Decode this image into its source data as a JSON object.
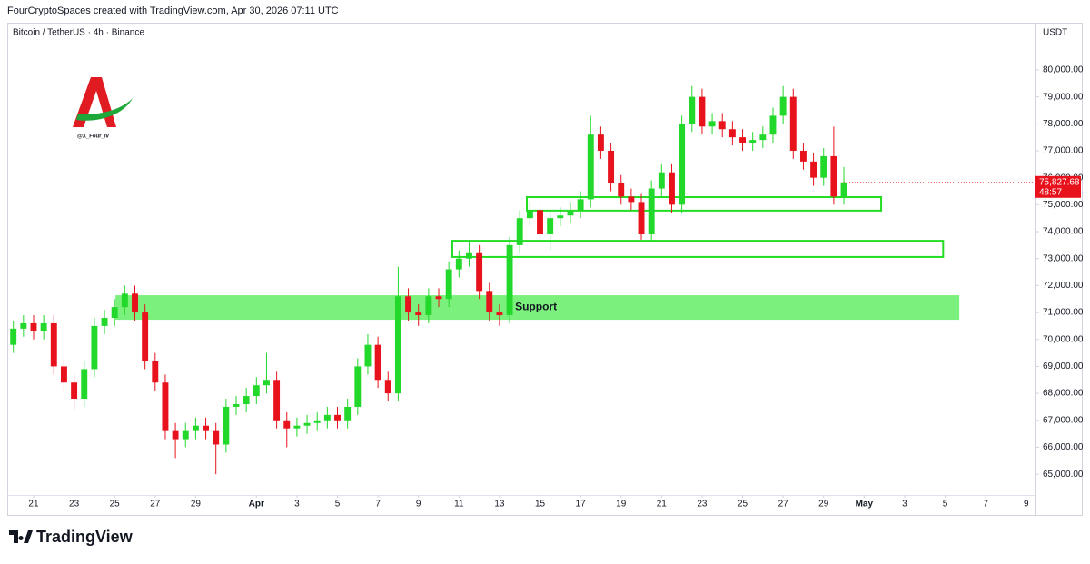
{
  "header": "FourCryptoSpaces created with TradingView.com, Apr 30, 2026 07:11 UTC",
  "symbol": "Bitcoin / TetherUS · 4h · Binance",
  "currency": "USDT",
  "handle": "@X_Four_lv",
  "brand": "TradingView",
  "chart_data": {
    "type": "candlestick",
    "x": [
      20,
      20.5,
      21,
      21.5,
      22,
      22.5,
      23,
      23.5,
      24,
      24.5,
      25,
      25.5,
      26,
      26.5,
      27,
      27.5,
      28,
      28.5,
      29,
      29.5,
      30,
      30.5,
      31,
      31.5,
      32,
      32.5,
      33,
      33.5,
      34,
      34.5,
      35,
      35.5,
      36,
      36.5,
      37,
      37.5,
      38,
      38.5,
      39,
      39.5,
      40,
      40.5,
      41,
      41.5,
      42,
      42.5,
      43,
      43.5,
      44,
      44.5,
      45,
      45.5,
      46,
      46.5,
      47,
      47.5,
      48,
      48.5,
      49,
      49.5,
      50,
      50.5,
      51,
      51.5,
      52,
      52.5,
      53,
      53.5,
      54,
      54.5,
      55,
      55.5,
      56,
      56.5,
      57,
      57.5,
      58,
      58.5,
      59,
      59.5,
      60,
      60.5,
      61
    ],
    "open": [
      69800,
      70400,
      70600,
      70300,
      70600,
      69000,
      68400,
      67800,
      68900,
      70500,
      70800,
      71200,
      71700,
      71000,
      69200,
      68400,
      66600,
      66300,
      66600,
      66800,
      66600,
      66100,
      67500,
      67600,
      67900,
      68300,
      68500,
      67000,
      66700,
      66800,
      66900,
      67000,
      67200,
      67000,
      67500,
      69000,
      69800,
      68500,
      68000,
      71600,
      71000,
      70900,
      71600,
      71500,
      72600,
      73000,
      73200,
      71800,
      71000,
      70900,
      73500,
      74500,
      74800,
      73900,
      74500,
      74600,
      74800,
      75200,
      77600,
      77000,
      75800,
      75300,
      75100,
      73900,
      75600,
      76200,
      75000,
      78000,
      79000,
      77900,
      78100,
      77800,
      77500,
      77300,
      77400,
      77600,
      78300,
      79000,
      77000,
      76600,
      76000,
      76800,
      75300
    ],
    "high": [
      70700,
      70900,
      70900,
      70900,
      70900,
      69300,
      68700,
      69200,
      70800,
      71100,
      71500,
      72000,
      72000,
      71300,
      69500,
      68700,
      66900,
      66900,
      67100,
      67100,
      66900,
      67800,
      67900,
      68200,
      68600,
      69500,
      68800,
      67300,
      67100,
      67200,
      67300,
      67500,
      67500,
      67800,
      69300,
      70200,
      70100,
      68800,
      72700,
      71900,
      71300,
      71900,
      71900,
      72900,
      73300,
      73700,
      73500,
      72100,
      71300,
      73800,
      74800,
      75100,
      75100,
      74800,
      74900,
      75100,
      75500,
      78300,
      77900,
      77300,
      76100,
      75600,
      75400,
      75900,
      76500,
      76500,
      78300,
      79400,
      79300,
      78400,
      78400,
      78100,
      77800,
      77700,
      77900,
      78600,
      79400,
      79300,
      77300,
      76900,
      77100,
      77900,
      76400
    ],
    "low": [
      69500,
      70100,
      70000,
      70000,
      68700,
      68100,
      67400,
      67500,
      68600,
      70200,
      70500,
      70900,
      70700,
      68900,
      68100,
      66300,
      65600,
      66000,
      66300,
      66300,
      65000,
      65800,
      67200,
      67300,
      67600,
      68000,
      66700,
      66000,
      66400,
      66500,
      66600,
      66700,
      66700,
      66700,
      67200,
      68700,
      68200,
      67700,
      67700,
      70700,
      70500,
      70600,
      71200,
      71200,
      72300,
      72700,
      71500,
      70700,
      70500,
      70600,
      73200,
      74200,
      73600,
      73300,
      74200,
      74300,
      74500,
      74900,
      76700,
      75500,
      75000,
      74800,
      73700,
      73600,
      75300,
      74700,
      74700,
      77700,
      77600,
      77600,
      77500,
      77200,
      77000,
      77000,
      77100,
      77300,
      78000,
      76700,
      76300,
      75700,
      75700,
      75000,
      75000
    ],
    "close": [
      70400,
      70600,
      70300,
      70600,
      69000,
      68400,
      67800,
      68900,
      70500,
      70800,
      71200,
      71700,
      71000,
      69200,
      68400,
      66600,
      66300,
      66600,
      66800,
      66600,
      66100,
      67500,
      67600,
      67900,
      68300,
      68500,
      67000,
      66700,
      66800,
      66900,
      67000,
      67200,
      67000,
      67500,
      69000,
      69800,
      68500,
      68000,
      71600,
      71000,
      70900,
      71600,
      71500,
      72600,
      73000,
      73200,
      71800,
      71000,
      70900,
      73500,
      74500,
      74800,
      73900,
      74500,
      74600,
      74800,
      75200,
      77600,
      77000,
      75800,
      75300,
      75100,
      73900,
      75600,
      76200,
      75000,
      78000,
      79000,
      77900,
      78100,
      77800,
      77500,
      77300,
      77400,
      77600,
      78300,
      79000,
      77000,
      76600,
      76000,
      76800,
      75300,
      75827.68
    ],
    "up_color": "#22d82a",
    "down_color": "#e8121c",
    "xlim": [
      19.7,
      70.46
    ],
    "ylim": [
      64230,
      81750
    ],
    "xticks": [
      21,
      23,
      25,
      27,
      29,
      {
        "value": 32,
        "label": "Apr"
      },
      {
        "value": 34,
        "label": "3"
      },
      {
        "value": 36,
        "label": "5"
      },
      {
        "value": 38,
        "label": "7"
      },
      {
        "value": 40,
        "label": "9"
      },
      {
        "value": 42,
        "label": "11"
      },
      {
        "value": 44,
        "label": "13"
      },
      {
        "value": 46,
        "label": "15"
      },
      {
        "value": 48,
        "label": "17"
      },
      {
        "value": 50,
        "label": "19"
      },
      {
        "value": 52,
        "label": "21"
      },
      {
        "value": 54,
        "label": "23"
      },
      {
        "value": 56,
        "label": "25"
      },
      {
        "value": 58,
        "label": "27"
      },
      {
        "value": 60,
        "label": "29"
      },
      {
        "value": 62,
        "label": "May"
      },
      {
        "value": 64,
        "label": "3"
      },
      {
        "value": 66,
        "label": "5"
      },
      {
        "value": 68,
        "label": "7"
      },
      {
        "value": 70,
        "label": "9"
      }
    ],
    "yticks": [
      {
        "value": 65000,
        "label": "65,000.00"
      },
      {
        "value": 66000,
        "label": "66,000.00"
      },
      {
        "value": 67000,
        "label": "67,000.00"
      },
      {
        "value": 68000,
        "label": "68,000.00"
      },
      {
        "value": 69000,
        "label": "69,000.00"
      },
      {
        "value": 70000,
        "label": "70,000.00"
      },
      {
        "value": 71000,
        "label": "71,000.00"
      },
      {
        "value": 72000,
        "label": "72,000.00"
      },
      {
        "value": 73000,
        "label": "73,000.00"
      },
      {
        "value": 74000,
        "label": "74,000.00"
      },
      {
        "value": 75000,
        "label": "75,000.00"
      },
      {
        "value": 76000,
        "label": "76,000.00"
      },
      {
        "value": 77000,
        "label": "77,000.00"
      },
      {
        "value": 78000,
        "label": "78,000.00"
      },
      {
        "value": 79000,
        "label": "79,000.00"
      },
      {
        "value": 80000,
        "label": "80,000.00"
      }
    ],
    "grid": false,
    "zones": [
      {
        "x0": 25.04,
        "x1": 66.7,
        "y0": 70730,
        "y1": 71640,
        "style": "fill",
        "color": "#7cf07c",
        "label": "Support"
      },
      {
        "x0": 41.67,
        "x1": 65.9,
        "y0": 73060,
        "y1": 73660,
        "style": "outline",
        "color": "#22dd22"
      },
      {
        "x0": 45.35,
        "x1": 62.84,
        "y0": 74780,
        "y1": 75280,
        "style": "outline",
        "color": "#22dd22"
      }
    ],
    "last_price": {
      "value": 75827.68,
      "label": "75,827.68"
    },
    "countdown": "48:57"
  }
}
